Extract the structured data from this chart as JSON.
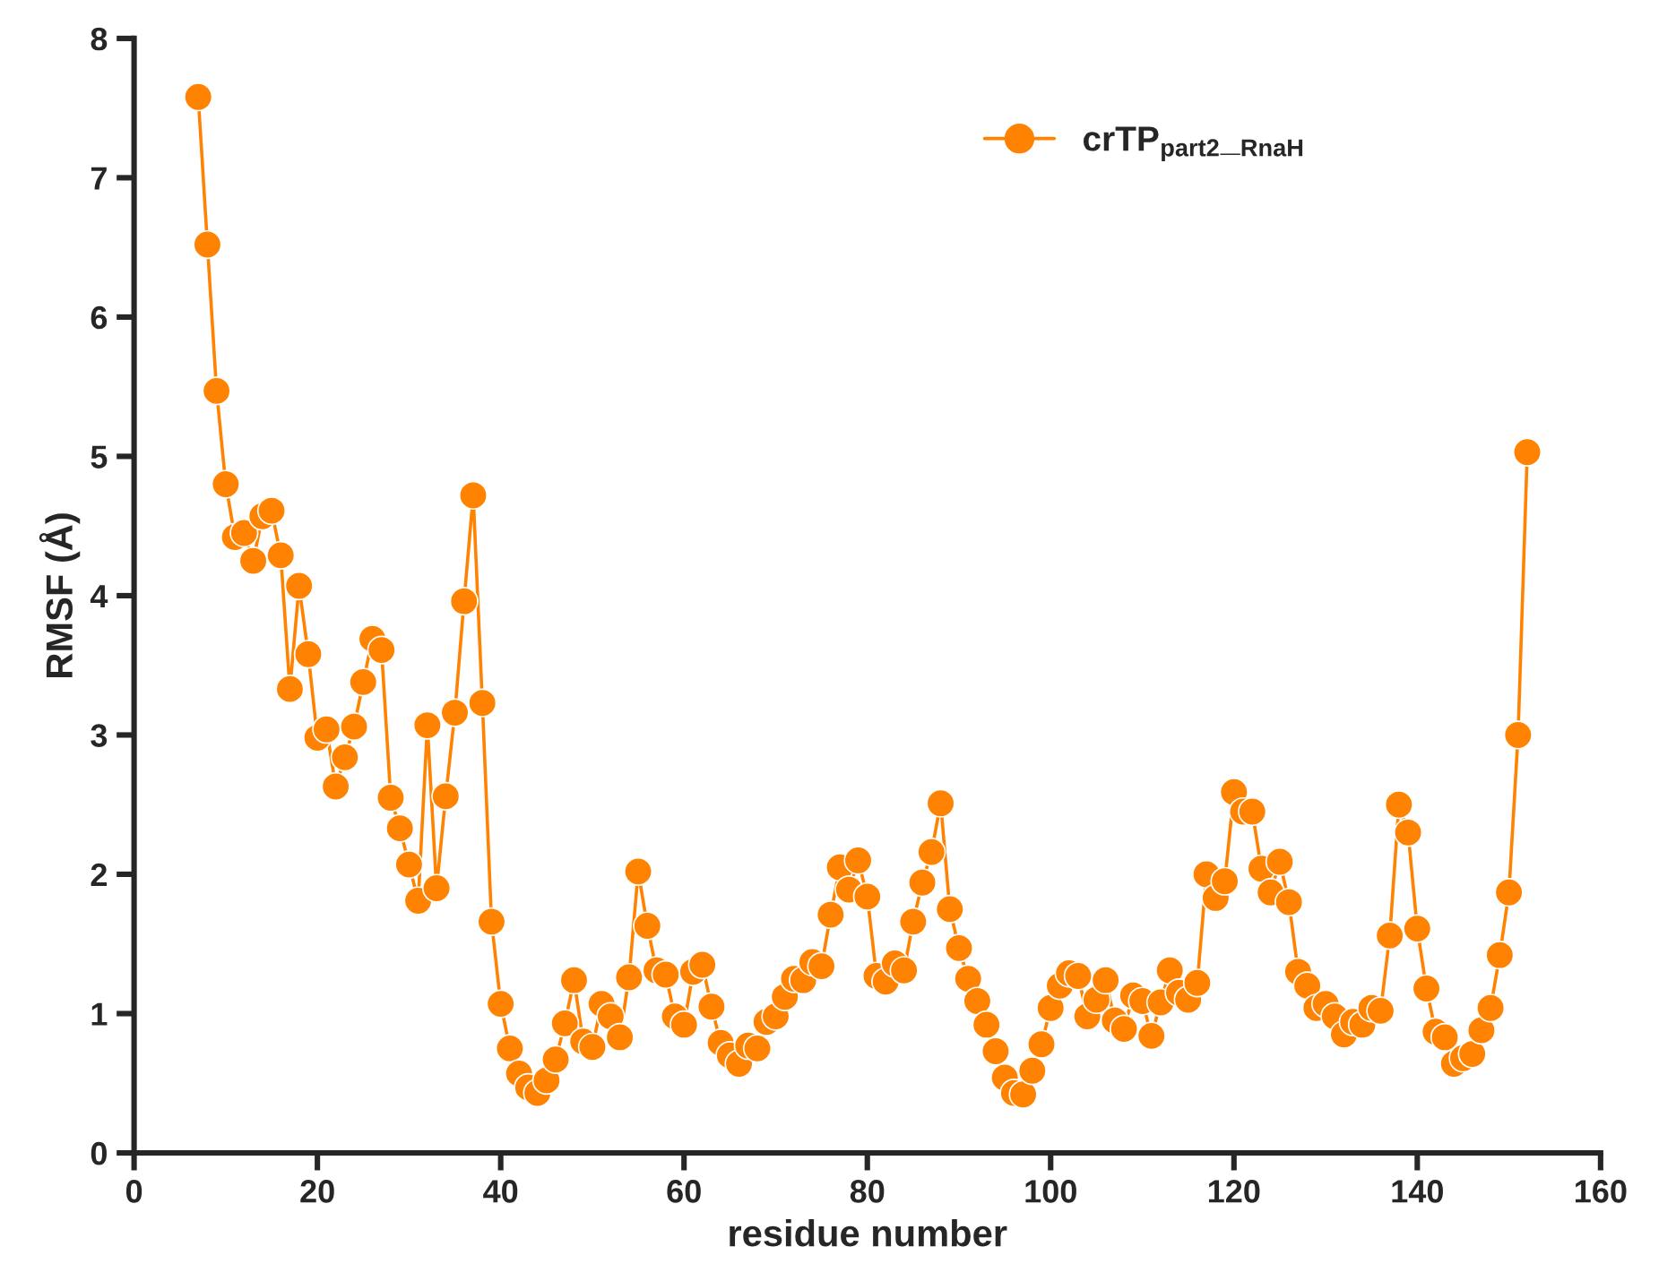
{
  "chart_data": {
    "type": "line",
    "xlabel": "residue number",
    "ylabel": "RMSF (Å)",
    "x": [
      7,
      8,
      9,
      10,
      11,
      12,
      13,
      14,
      15,
      16,
      17,
      18,
      19,
      20,
      21,
      22,
      23,
      24,
      25,
      26,
      27,
      28,
      29,
      30,
      31,
      32,
      33,
      34,
      35,
      36,
      37,
      38,
      39,
      40,
      41,
      42,
      43,
      44,
      45,
      46,
      47,
      48,
      49,
      50,
      51,
      52,
      53,
      54,
      55,
      56,
      57,
      58,
      59,
      60,
      61,
      62,
      63,
      64,
      65,
      66,
      67,
      68,
      69,
      70,
      71,
      72,
      73,
      74,
      75,
      76,
      77,
      78,
      79,
      80,
      81,
      82,
      83,
      84,
      85,
      86,
      87,
      88,
      89,
      90,
      91,
      92,
      93,
      94,
      95,
      96,
      97,
      98,
      99,
      100,
      101,
      102,
      103,
      104,
      105,
      106,
      107,
      108,
      109,
      110,
      111,
      112,
      113,
      114,
      115,
      116,
      117,
      118,
      119,
      120,
      121,
      122,
      123,
      124,
      125,
      126,
      127,
      128,
      129,
      130,
      131,
      132,
      133,
      134,
      135,
      136,
      137,
      138,
      139,
      140,
      141,
      142,
      143,
      144,
      145,
      146,
      147,
      148,
      149,
      150,
      151,
      152
    ],
    "series": [
      {
        "name": "crTP$_{part2}$_$_{RnaH}$",
        "color": "#ff8200",
        "values": [
          7.58,
          6.52,
          5.47,
          4.8,
          4.42,
          4.45,
          4.25,
          4.57,
          4.61,
          4.29,
          3.33,
          4.07,
          3.58,
          2.98,
          3.04,
          2.63,
          2.84,
          3.06,
          3.38,
          3.69,
          3.61,
          2.55,
          2.33,
          2.07,
          1.81,
          3.07,
          1.9,
          2.56,
          3.16,
          3.96,
          4.72,
          3.23,
          1.66,
          1.07,
          0.75,
          0.57,
          0.47,
          0.43,
          0.52,
          0.67,
          0.93,
          1.24,
          0.8,
          0.76,
          1.07,
          0.98,
          0.83,
          1.26,
          2.02,
          1.63,
          1.31,
          1.28,
          0.98,
          0.92,
          1.3,
          1.35,
          1.05,
          0.79,
          0.7,
          0.64,
          0.77,
          0.75,
          0.94,
          0.98,
          1.12,
          1.25,
          1.24,
          1.37,
          1.34,
          1.71,
          2.05,
          1.89,
          2.1,
          1.84,
          1.27,
          1.23,
          1.36,
          1.31,
          1.66,
          1.94,
          2.16,
          2.51,
          1.75,
          1.47,
          1.25,
          1.09,
          0.92,
          0.73,
          0.54,
          0.43,
          0.42,
          0.59,
          0.78,
          1.04,
          1.2,
          1.29,
          1.27,
          0.98,
          1.1,
          1.24,
          0.95,
          0.89,
          1.13,
          1.09,
          0.84,
          1.08,
          1.31,
          1.15,
          1.1,
          1.22,
          2.0,
          1.83,
          1.95,
          2.59,
          2.45,
          2.45,
          2.04,
          1.87,
          2.09,
          1.8,
          1.3,
          1.2,
          1.04,
          1.07,
          0.98,
          0.85,
          0.94,
          0.92,
          1.04,
          1.02,
          1.56,
          2.5,
          2.3,
          1.61,
          1.18,
          0.87,
          0.83,
          0.64,
          0.68,
          0.71,
          0.88,
          1.04,
          1.42,
          1.87,
          3.0,
          5.03
        ]
      }
    ],
    "xlim": [
      0,
      160
    ],
    "xticks": [
      0,
      20,
      40,
      60,
      80,
      100,
      120,
      140,
      160
    ],
    "ylim": [
      0,
      8
    ],
    "yticks": [
      0,
      1,
      2,
      3,
      4,
      5,
      6,
      7,
      8
    ],
    "marker": "circle",
    "line_style": "solid",
    "legend": "top right",
    "grid": false
  }
}
